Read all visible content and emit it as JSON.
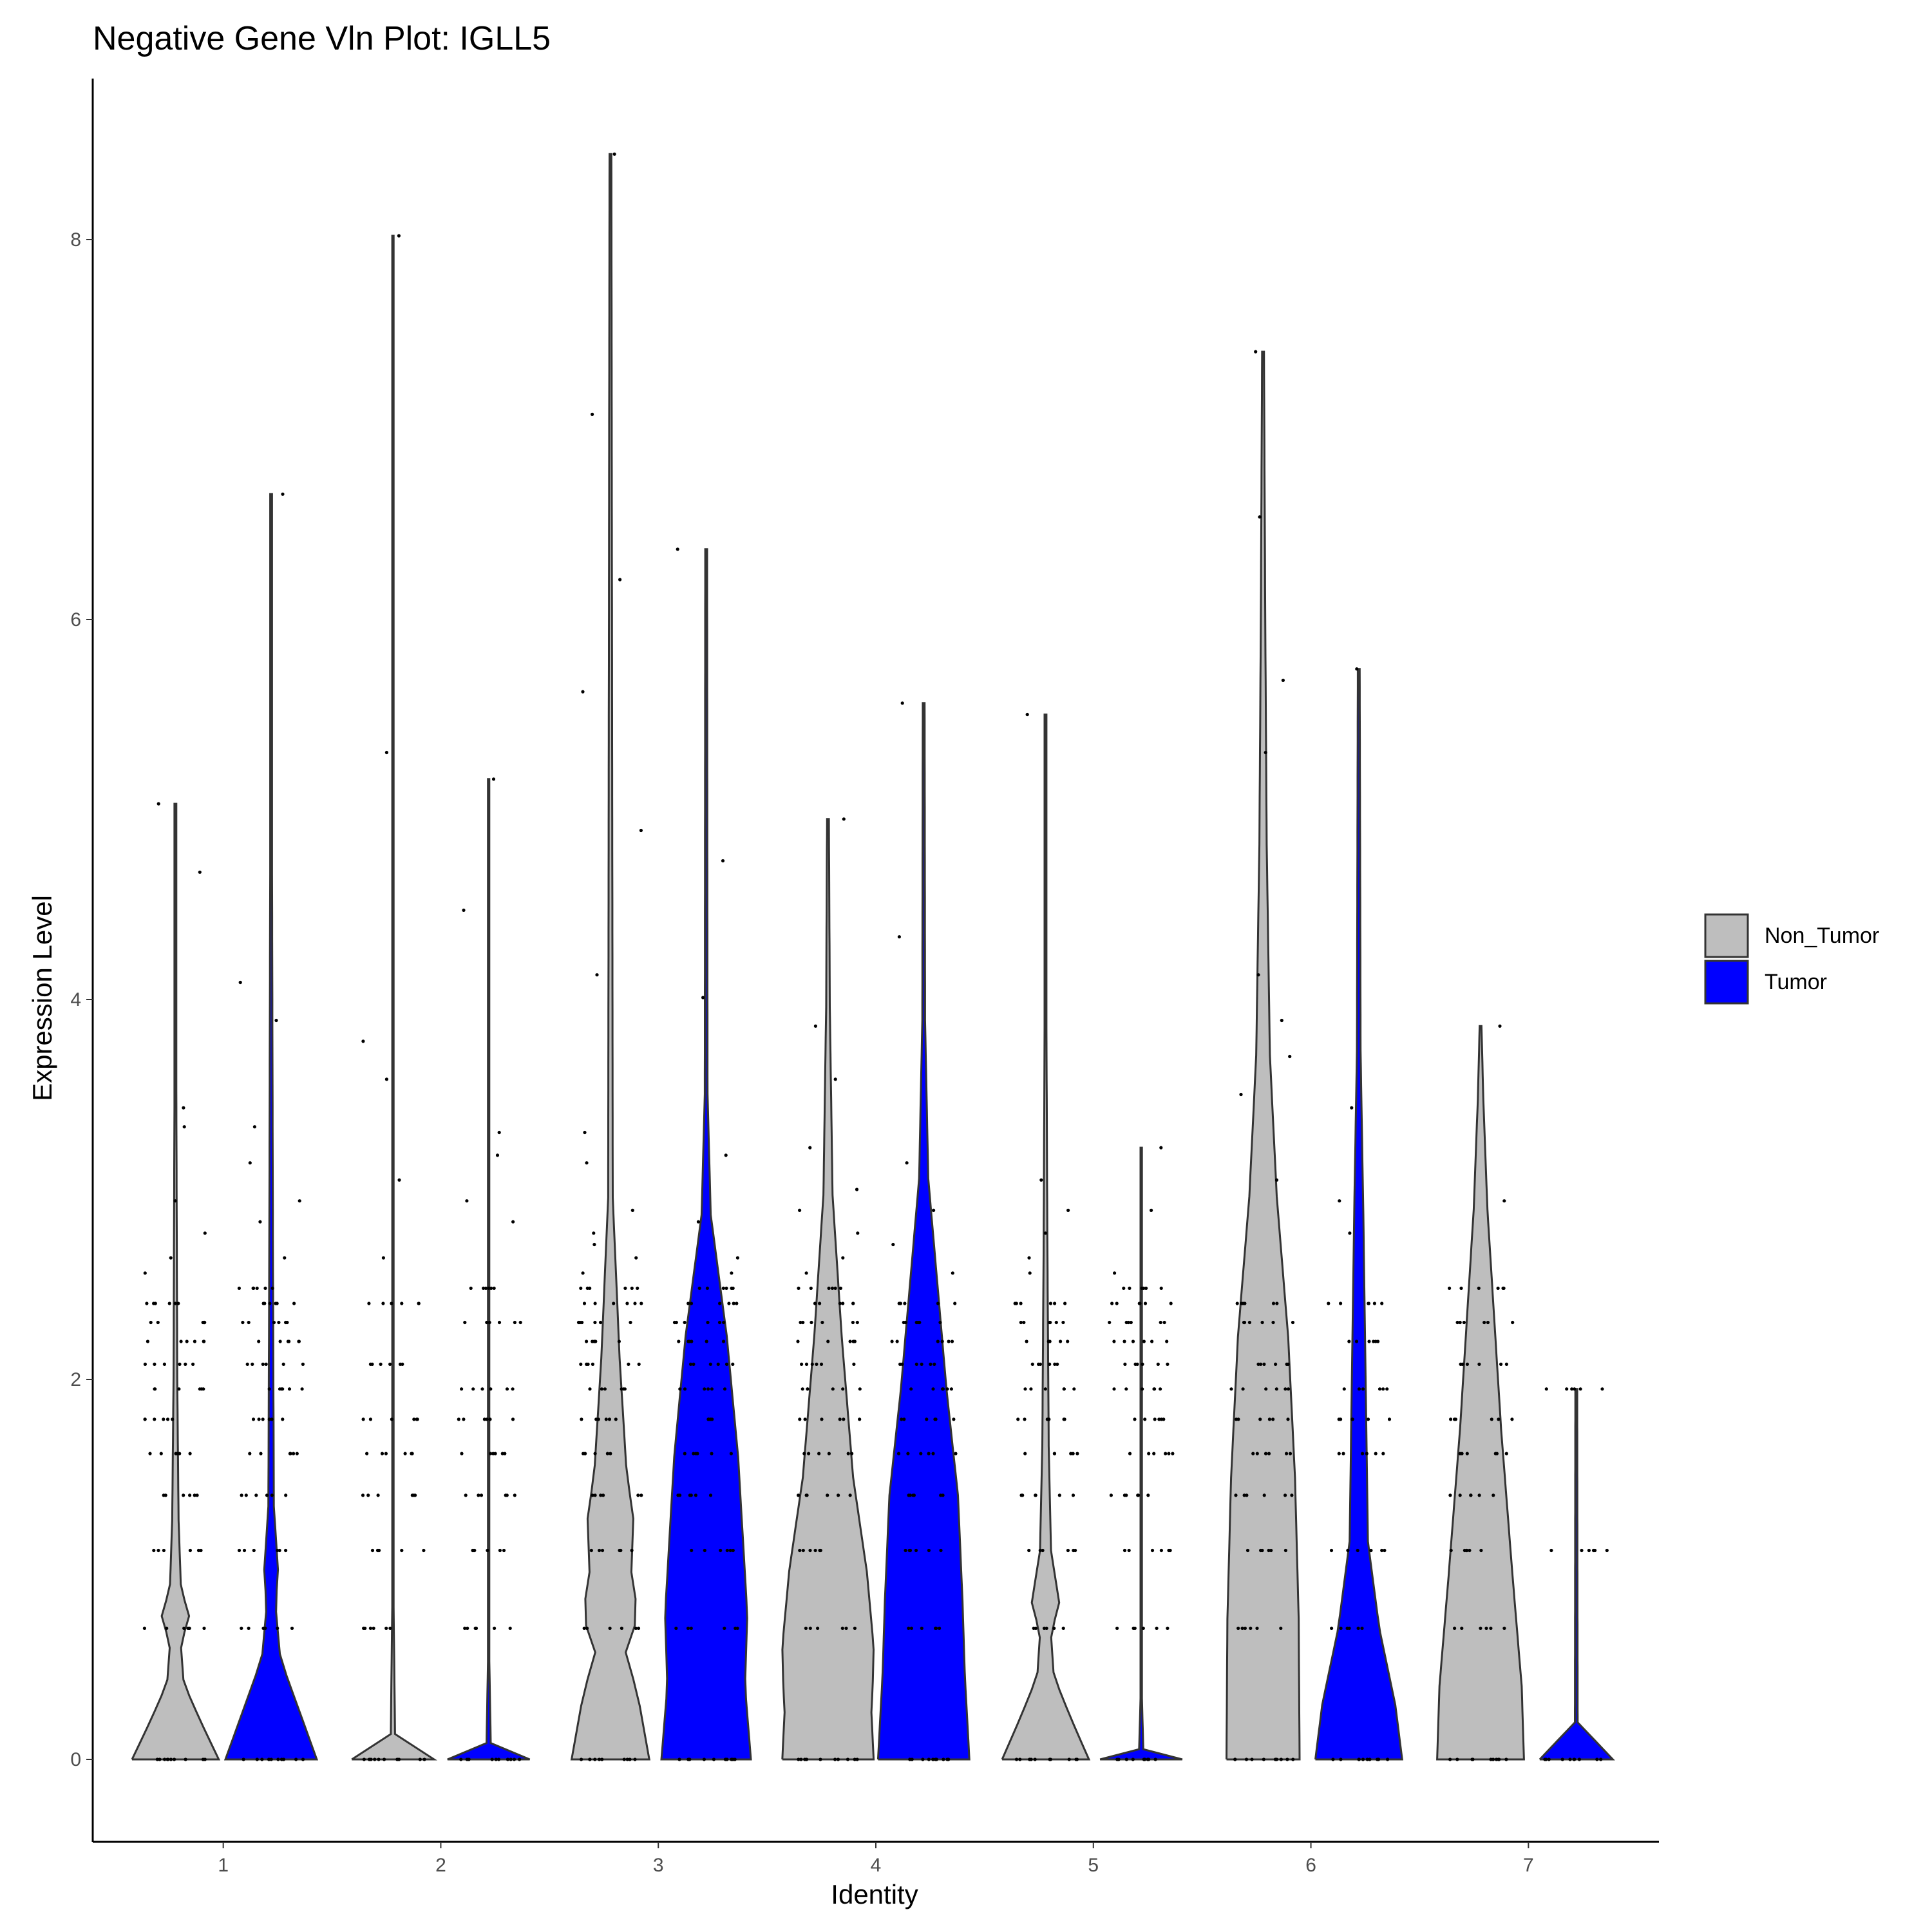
{
  "chart_data": {
    "type": "violin",
    "title": "Negative Gene Vln Plot: IGLL5",
    "xlabel": "Identity",
    "ylabel": "Expression Level",
    "categories": [
      "1",
      "2",
      "3",
      "4",
      "5",
      "6",
      "7"
    ],
    "y_ticks": [
      "0",
      "2",
      "4",
      "6",
      "8"
    ],
    "ylim": [
      -0.42,
      8.9
    ],
    "grid": false,
    "legend_position": "right",
    "legend": [
      {
        "name": "Non_Tumor",
        "color": "#bebebe"
      },
      {
        "name": "Tumor",
        "color": "#0000ff"
      }
    ],
    "series": [
      {
        "name": "Non_Tumor",
        "color": "#bebebe",
        "max": [
          5.03,
          8.02,
          8.45,
          4.95,
          5.5,
          7.41,
          3.86
        ],
        "dot_levels": [
          [
            0,
            0.69,
            1.1,
            1.39,
            1.61,
            1.79,
            1.95,
            2.08,
            2.2,
            2.3,
            2.4,
            2.56,
            2.64,
            2.77,
            2.94,
            3.33,
            3.43,
            4.67,
            5.03
          ],
          [
            0,
            0.69,
            1.1,
            1.39,
            1.61,
            1.79,
            2.08,
            2.4,
            2.64,
            3.05,
            3.58,
            3.78,
            5.3,
            8.02
          ],
          [
            0,
            0.69,
            1.1,
            1.39,
            1.61,
            1.79,
            1.95,
            2.08,
            2.2,
            2.3,
            2.4,
            2.48,
            2.56,
            2.64,
            2.71,
            2.77,
            2.89,
            3.14,
            3.3,
            4.13,
            4.89,
            5.62,
            6.21,
            7.08,
            8.45
          ],
          [
            0,
            0.69,
            1.1,
            1.39,
            1.61,
            1.79,
            1.95,
            2.08,
            2.2,
            2.3,
            2.4,
            2.48,
            2.56,
            2.64,
            2.77,
            2.89,
            3.0,
            3.22,
            3.58,
            3.86,
            4.95
          ],
          [
            0,
            0.69,
            1.1,
            1.39,
            1.61,
            1.79,
            1.95,
            2.08,
            2.2,
            2.3,
            2.4,
            2.56,
            2.64,
            2.77,
            2.89,
            3.05,
            5.5
          ],
          [
            0,
            0.69,
            1.1,
            1.39,
            1.61,
            1.79,
            1.95,
            2.08,
            2.3,
            2.4,
            3.05,
            3.5,
            3.7,
            3.89,
            4.13,
            5.3,
            5.68,
            6.54,
            7.41
          ],
          [
            0,
            0.69,
            1.1,
            1.39,
            1.61,
            1.79,
            2.08,
            2.3,
            2.48,
            2.94,
            3.86
          ]
        ]
      },
      {
        "name": "Tumor",
        "color": "#0000ff",
        "max": [
          6.66,
          5.16,
          6.37,
          5.56,
          3.22,
          5.74,
          1.95
        ],
        "dot_levels": [
          [
            0,
            0.69,
            1.1,
            1.39,
            1.61,
            1.79,
            1.95,
            2.08,
            2.2,
            2.3,
            2.4,
            2.48,
            2.64,
            2.83,
            2.94,
            3.14,
            3.33,
            3.89,
            4.09,
            6.66
          ],
          [
            0,
            0.69,
            1.1,
            1.39,
            1.61,
            1.79,
            1.95,
            2.3,
            2.48,
            2.83,
            2.94,
            3.18,
            3.3,
            4.47,
            5.16
          ],
          [
            0,
            0.69,
            1.1,
            1.39,
            1.61,
            1.79,
            1.95,
            2.08,
            2.2,
            2.3,
            2.4,
            2.48,
            2.56,
            2.64,
            2.83,
            3.18,
            4.01,
            4.73,
            6.37
          ],
          [
            0,
            0.69,
            1.1,
            1.39,
            1.61,
            1.79,
            1.95,
            2.08,
            2.2,
            2.3,
            2.4,
            2.56,
            2.71,
            2.89,
            3.14,
            4.33,
            5.56
          ],
          [
            0,
            0.69,
            1.1,
            1.39,
            1.61,
            1.79,
            1.95,
            2.08,
            2.2,
            2.3,
            2.4,
            2.48,
            2.56,
            2.89,
            3.22
          ],
          [
            0,
            0.69,
            1.1,
            1.61,
            1.79,
            1.95,
            2.2,
            2.4,
            2.77,
            2.94,
            3.43,
            5.74
          ],
          [
            0,
            1.1,
            1.95
          ]
        ]
      }
    ]
  }
}
